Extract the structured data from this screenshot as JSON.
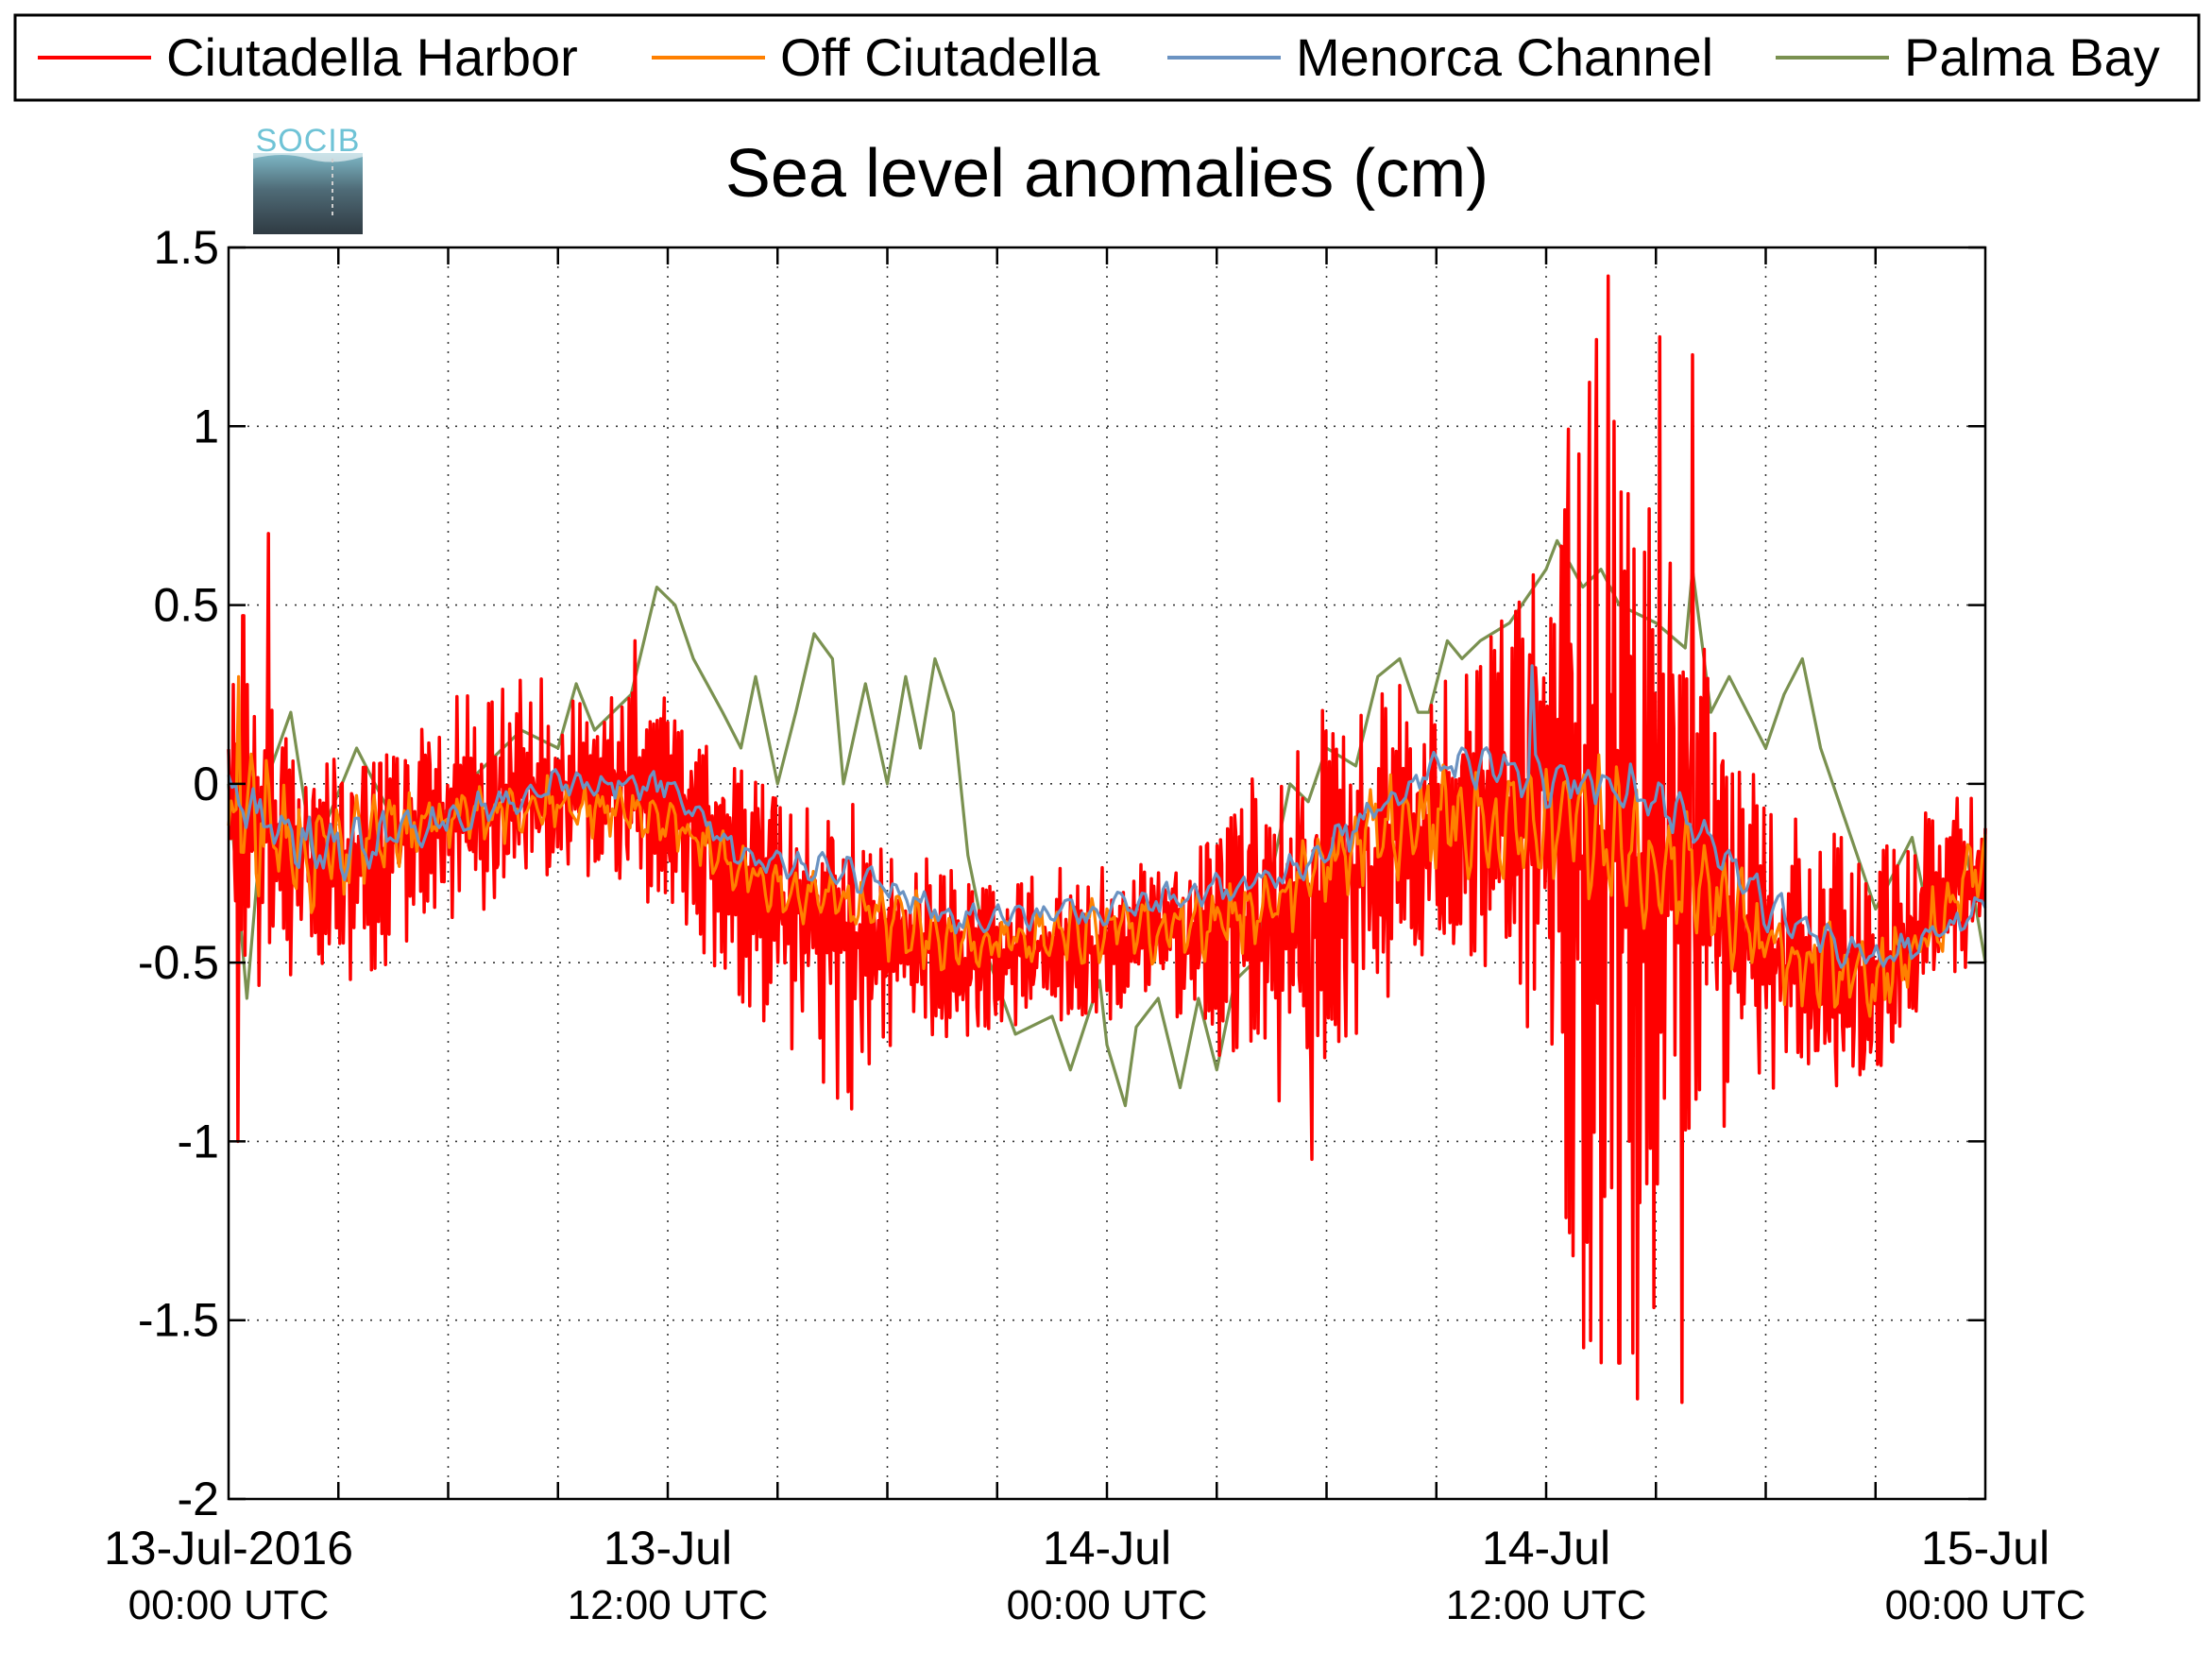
{
  "chart_data": {
    "type": "line",
    "title": "Sea level anomalies (cm)",
    "logo_text": "SOCIB",
    "xlabel": "",
    "ylabel": "",
    "ylim": [
      -2,
      1.5
    ],
    "yticks": [
      1.5,
      1,
      0.5,
      0,
      -0.5,
      -1,
      -1.5,
      -2
    ],
    "ytick_labels": [
      "1.5",
      "1",
      "0.5",
      "0",
      "-0.5",
      "-1",
      "-1.5",
      "-2"
    ],
    "xlim_hours": [
      0,
      48
    ],
    "x_minor_tick_hours": [
      3,
      6,
      9,
      12,
      15,
      18,
      21,
      24,
      27,
      30,
      33,
      36,
      39,
      42,
      45
    ],
    "xticks": [
      {
        "hour": 0,
        "date": "13-Jul-2016",
        "time": "00:00 UTC"
      },
      {
        "hour": 12,
        "date": "13-Jul",
        "time": "12:00 UTC"
      },
      {
        "hour": 24,
        "date": "14-Jul",
        "time": "00:00 UTC"
      },
      {
        "hour": 36,
        "date": "14-Jul",
        "time": "12:00 UTC"
      },
      {
        "hour": 48,
        "date": "15-Jul",
        "time": "00:00 UTC"
      }
    ],
    "grid": true,
    "legend_position": "top",
    "series": [
      {
        "name": "Ciutadella Harbor",
        "color": "#ff0000",
        "base": [
          [
            0,
            -0.1
          ],
          [
            3,
            -0.2
          ],
          [
            6,
            -0.1
          ],
          [
            9,
            0.0
          ],
          [
            12,
            -0.05
          ],
          [
            14,
            -0.25
          ],
          [
            17,
            -0.45
          ],
          [
            20,
            -0.5
          ],
          [
            24,
            -0.45
          ],
          [
            27,
            -0.4
          ],
          [
            29,
            -0.35
          ],
          [
            31,
            -0.25
          ],
          [
            33,
            -0.1
          ],
          [
            36,
            -0.05
          ],
          [
            38,
            -0.1
          ],
          [
            40,
            -0.2
          ],
          [
            42,
            -0.5
          ],
          [
            45,
            -0.55
          ],
          [
            47,
            -0.3
          ],
          [
            48,
            -0.25
          ]
        ],
        "amp": [
          [
            0,
            0.45
          ],
          [
            2,
            0.3
          ],
          [
            6,
            0.3
          ],
          [
            10,
            0.25
          ],
          [
            14,
            0.3
          ],
          [
            17,
            0.4
          ],
          [
            18,
            0.25
          ],
          [
            22,
            0.2
          ],
          [
            26,
            0.2
          ],
          [
            28,
            0.4
          ],
          [
            29,
            0.55
          ],
          [
            31,
            0.4
          ],
          [
            34,
            0.4
          ],
          [
            36,
            0.7
          ],
          [
            37,
            1.3
          ],
          [
            38.5,
            1.3
          ],
          [
            40,
            0.7
          ],
          [
            42,
            0.4
          ],
          [
            45,
            0.3
          ],
          [
            48,
            0.2
          ]
        ],
        "highlights": [
          [
            0.25,
            -1.0
          ],
          [
            0.4,
            0.47
          ],
          [
            1.1,
            0.7
          ],
          [
            11.1,
            0.4
          ],
          [
            29.6,
            -1.05
          ],
          [
            37.7,
            1.42
          ],
          [
            38.5,
            -1.72
          ],
          [
            39.7,
            -1.73
          ],
          [
            40,
            1.2
          ],
          [
            38,
            -1.62
          ],
          [
            39.1,
            1.25
          ],
          [
            47.2,
            -0.15
          ]
        ]
      },
      {
        "name": "Off Ciutadella",
        "color": "#ff8000",
        "base": [
          [
            0,
            -0.1
          ],
          [
            3,
            -0.2
          ],
          [
            6,
            -0.1
          ],
          [
            9,
            -0.05
          ],
          [
            12,
            -0.1
          ],
          [
            14,
            -0.25
          ],
          [
            17,
            -0.35
          ],
          [
            20,
            -0.45
          ],
          [
            24,
            -0.4
          ],
          [
            27,
            -0.4
          ],
          [
            29,
            -0.3
          ],
          [
            31,
            -0.15
          ],
          [
            33,
            -0.1
          ],
          [
            36,
            -0.1
          ],
          [
            38,
            -0.15
          ],
          [
            40,
            -0.25
          ],
          [
            42,
            -0.45
          ],
          [
            45,
            -0.55
          ],
          [
            47,
            -0.35
          ],
          [
            48,
            -0.2
          ]
        ],
        "amp": [
          [
            0,
            0.25
          ],
          [
            6,
            0.1
          ],
          [
            12,
            0.08
          ],
          [
            18,
            0.12
          ],
          [
            24,
            0.1
          ],
          [
            30,
            0.15
          ],
          [
            36,
            0.2
          ],
          [
            38,
            0.25
          ],
          [
            40,
            0.2
          ],
          [
            44,
            0.15
          ],
          [
            48,
            0.1
          ]
        ],
        "highlights": [
          [
            0.25,
            0.3
          ]
        ]
      },
      {
        "name": "Menorca Channel",
        "color": "#6b93c2",
        "base": [
          [
            0,
            -0.05
          ],
          [
            3,
            -0.2
          ],
          [
            6,
            -0.1
          ],
          [
            9,
            0.0
          ],
          [
            12,
            0.0
          ],
          [
            14,
            -0.2
          ],
          [
            17,
            -0.25
          ],
          [
            20,
            -0.38
          ],
          [
            24,
            -0.35
          ],
          [
            27,
            -0.3
          ],
          [
            29,
            -0.25
          ],
          [
            31,
            -0.1
          ],
          [
            33,
            0.05
          ],
          [
            35,
            0.05
          ],
          [
            36,
            0.0
          ],
          [
            38,
            0.0
          ],
          [
            40,
            -0.1
          ],
          [
            42,
            -0.35
          ],
          [
            45,
            -0.5
          ],
          [
            47,
            -0.4
          ],
          [
            48,
            -0.35
          ]
        ],
        "amp": [
          [
            0,
            0.15
          ],
          [
            6,
            0.06
          ],
          [
            12,
            0.05
          ],
          [
            18,
            0.05
          ],
          [
            24,
            0.05
          ],
          [
            30,
            0.06
          ],
          [
            36,
            0.08
          ],
          [
            40,
            0.08
          ],
          [
            44,
            0.06
          ],
          [
            48,
            0.05
          ]
        ],
        "highlights": [
          [
            35.6,
            0.33
          ]
        ]
      },
      {
        "name": "Palma Bay",
        "color": "#7a9150",
        "points": [
          [
            0,
            0.0
          ],
          [
            0.5,
            -0.6
          ],
          [
            1,
            0.0
          ],
          [
            1.7,
            0.2
          ],
          [
            2.3,
            -0.2
          ],
          [
            3.5,
            0.1
          ],
          [
            5,
            -0.2
          ],
          [
            6.5,
            0.0
          ],
          [
            8,
            0.15
          ],
          [
            9,
            0.1
          ],
          [
            9.5,
            0.28
          ],
          [
            10,
            0.15
          ],
          [
            11,
            0.25
          ],
          [
            11.7,
            0.55
          ],
          [
            12.2,
            0.5
          ],
          [
            12.7,
            0.35
          ],
          [
            13.5,
            0.2
          ],
          [
            14,
            0.1
          ],
          [
            14.4,
            0.3
          ],
          [
            15,
            0.0
          ],
          [
            15.5,
            0.2
          ],
          [
            16,
            0.42
          ],
          [
            16.5,
            0.35
          ],
          [
            16.8,
            0.0
          ],
          [
            17.4,
            0.28
          ],
          [
            18,
            0.0
          ],
          [
            18.5,
            0.3
          ],
          [
            18.9,
            0.1
          ],
          [
            19.3,
            0.35
          ],
          [
            19.8,
            0.2
          ],
          [
            20.2,
            -0.2
          ],
          [
            20.8,
            -0.5
          ],
          [
            21.5,
            -0.7
          ],
          [
            22.5,
            -0.65
          ],
          [
            23,
            -0.8
          ],
          [
            23.8,
            -0.55
          ],
          [
            24,
            -0.73
          ],
          [
            24.5,
            -0.9
          ],
          [
            24.8,
            -0.68
          ],
          [
            25.4,
            -0.6
          ],
          [
            26,
            -0.85
          ],
          [
            26.5,
            -0.6
          ],
          [
            27,
            -0.8
          ],
          [
            27.5,
            -0.55
          ],
          [
            28,
            -0.5
          ],
          [
            29,
            0.0
          ],
          [
            29.5,
            -0.05
          ],
          [
            30,
            0.1
          ],
          [
            30.8,
            0.05
          ],
          [
            31.4,
            0.3
          ],
          [
            32,
            0.35
          ],
          [
            32.5,
            0.2
          ],
          [
            32.8,
            0.2
          ],
          [
            33.3,
            0.4
          ],
          [
            33.7,
            0.35
          ],
          [
            34.2,
            0.4
          ],
          [
            35,
            0.45
          ],
          [
            36,
            0.6
          ],
          [
            36.3,
            0.68
          ],
          [
            37,
            0.55
          ],
          [
            37.5,
            0.6
          ],
          [
            38,
            0.5
          ],
          [
            39,
            0.45
          ],
          [
            39.8,
            0.38
          ],
          [
            40,
            0.6
          ],
          [
            40.5,
            0.2
          ],
          [
            41,
            0.3
          ],
          [
            42,
            0.1
          ],
          [
            42.5,
            0.25
          ],
          [
            43,
            0.35
          ],
          [
            43.5,
            0.1
          ],
          [
            44,
            -0.05
          ],
          [
            45,
            -0.35
          ],
          [
            46,
            -0.15
          ],
          [
            46.5,
            -0.4
          ],
          [
            47,
            -0.3
          ],
          [
            47.5,
            -0.2
          ],
          [
            48,
            -0.5
          ]
        ]
      }
    ]
  }
}
